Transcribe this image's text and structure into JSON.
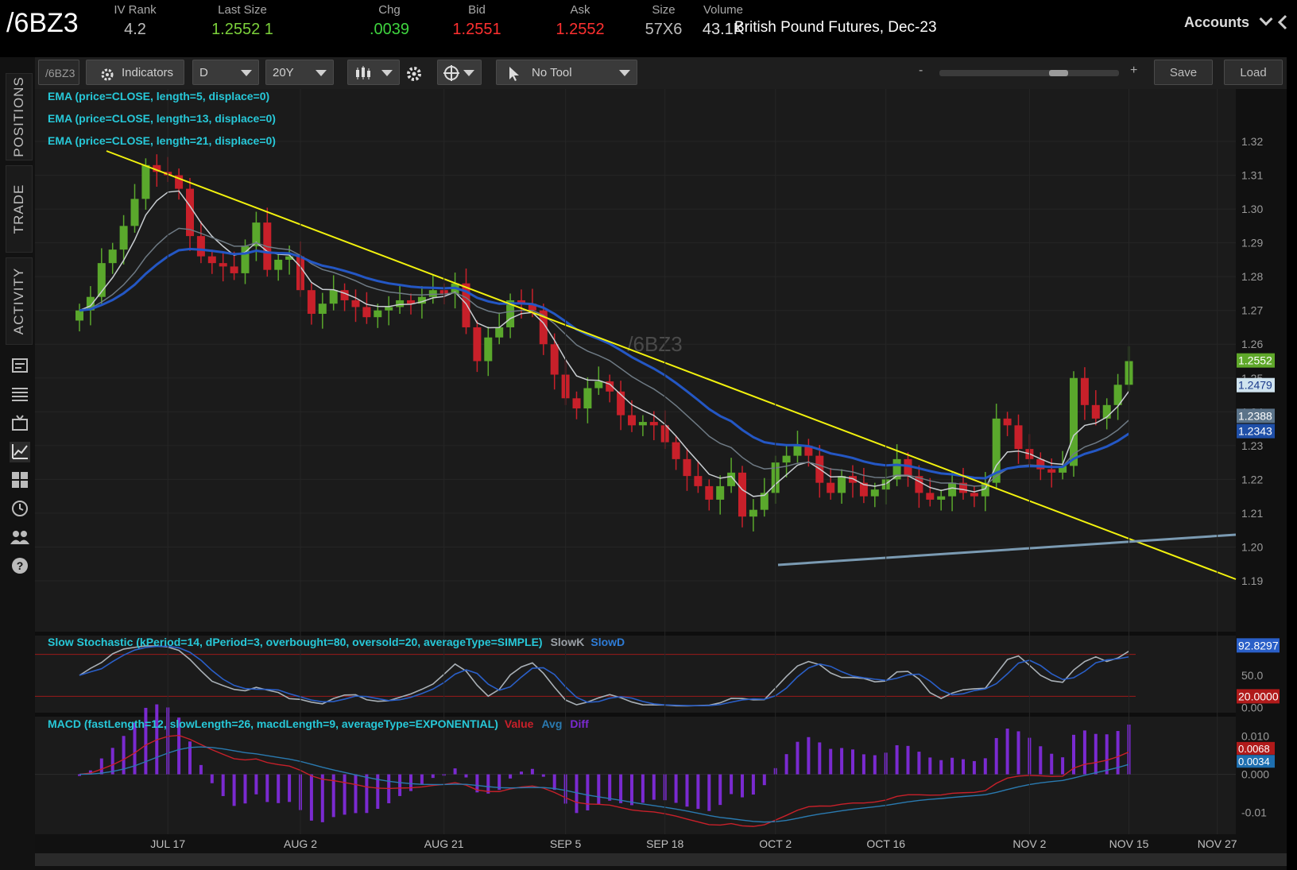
{
  "header": {
    "symbol": "/6BZ3",
    "stats": [
      {
        "label": "IV Rank",
        "value": "4.2",
        "color": "#bdbdbd"
      },
      {
        "label": "Last Size",
        "value": "1.2552",
        "extra": "1",
        "color": "#7cd13b"
      },
      {
        "label": "Chg",
        "value": ".0039",
        "color": "#3fd43f"
      },
      {
        "label": "Bid",
        "value": "1.2551",
        "color": "#ff3030"
      },
      {
        "label": "Ask",
        "value": "1.2552",
        "color": "#ff3030"
      },
      {
        "label": "Size",
        "value": "57X6",
        "color": "#bdbdbd"
      },
      {
        "label": "Volume",
        "value": "43.1K",
        "color": "#e0e0e0"
      }
    ],
    "description": "British Pound Futures, Dec-23",
    "accounts_label": "Accounts"
  },
  "rail": {
    "tabs": [
      "POSITIONS",
      "TRADE",
      "ACTIVITY"
    ],
    "icons": [
      "watchlist-icon",
      "list-icon",
      "tv-icon",
      "chart-icon",
      "grid-icon",
      "clock-icon",
      "people-icon",
      "help-icon"
    ]
  },
  "toolbar": {
    "symbol_field": "/6BZ3",
    "indicators_label": "Indicators",
    "aggregation": "D",
    "timeframe": "20Y",
    "drawing_tool": "No Tool",
    "zoom_minus": "-",
    "zoom_plus": "+",
    "save_label": "Save",
    "load_label": "Load"
  },
  "studies": {
    "ema1": "EMA (price=CLOSE, length=5, displace=0)",
    "ema2": "EMA (price=CLOSE, length=13, displace=0)",
    "ema3": "EMA (price=CLOSE, length=21, displace=0)",
    "watermark": "/6BZ3",
    "stoch_label": "Slow Stochastic (kPeriod=14, dPeriod=3, overbought=80, oversold=20, averageType=SIMPLE)",
    "stoch_k": "SlowK",
    "stoch_d": "SlowD",
    "macd_label": "MACD (fastLength=12, slowLength=26, macdLength=9, averageType=EXPONENTIAL)",
    "macd_value": "Value",
    "macd_avg": "Avg",
    "macd_diff": "Diff"
  },
  "chart_data": {
    "type": "candlestick",
    "price_axis": {
      "ticks": [
        "1.32",
        "1.31",
        "1.30",
        "1.29",
        "1.28",
        "1.27",
        "1.26",
        "1.25",
        "1.24",
        "1.23",
        "1.22",
        "1.21",
        "1.20",
        "1.19"
      ],
      "range": [
        1.186,
        1.328
      ]
    },
    "price_markers": [
      {
        "label": "1.2552",
        "bg": "#5fa82a",
        "fg": "#ffffff"
      },
      {
        "label": "1.2479",
        "bg": "#cfe3ee",
        "fg": "#1a3a8a"
      },
      {
        "label": "1.2388",
        "bg": "#5b7389",
        "fg": "#ffffff"
      },
      {
        "label": "1.2343",
        "bg": "#1f4fa8",
        "fg": "#ffffff"
      }
    ],
    "date_labels": [
      {
        "label": "JUL 17",
        "bar": 8
      },
      {
        "label": "AUG 2",
        "bar": 20
      },
      {
        "label": "AUG 21",
        "bar": 33
      },
      {
        "label": "SEP 5",
        "bar": 44
      },
      {
        "label": "SEP 18",
        "bar": 53
      },
      {
        "label": "OCT 2",
        "bar": 63
      },
      {
        "label": "OCT 16",
        "bar": 73
      },
      {
        "label": "NOV 2",
        "bar": 86
      },
      {
        "label": "NOV 15",
        "bar": 95
      },
      {
        "label": "NOV 27",
        "bar": 103
      }
    ],
    "closes": [
      1.27,
      1.274,
      1.284,
      1.288,
      1.295,
      1.303,
      1.313,
      1.311,
      1.31,
      1.306,
      1.292,
      1.286,
      1.284,
      1.283,
      1.281,
      1.289,
      1.296,
      1.282,
      1.285,
      1.286,
      1.276,
      1.269,
      1.272,
      1.276,
      1.273,
      1.271,
      1.268,
      1.27,
      1.271,
      1.273,
      1.272,
      1.274,
      1.276,
      1.275,
      1.278,
      1.265,
      1.255,
      1.262,
      1.265,
      1.273,
      1.272,
      1.27,
      1.26,
      1.251,
      1.244,
      1.241,
      1.247,
      1.249,
      1.246,
      1.239,
      1.236,
      1.237,
      1.236,
      1.231,
      1.226,
      1.221,
      1.218,
      1.214,
      1.218,
      1.222,
      1.209,
      1.211,
      1.216,
      1.225,
      1.227,
      1.23,
      1.227,
      1.219,
      1.216,
      1.221,
      1.219,
      1.215,
      1.217,
      1.22,
      1.226,
      1.221,
      1.216,
      1.214,
      1.215,
      1.219,
      1.216,
      1.215,
      1.219,
      1.238,
      1.236,
      1.229,
      1.226,
      1.223,
      1.222,
      1.224,
      1.25,
      1.242,
      1.238,
      1.242,
      1.248,
      1.255
    ],
    "ema_labels": [
      "EMA 5",
      "EMA 13",
      "EMA 21"
    ],
    "stochastic": {
      "ticks": [
        "50.0",
        "0.00"
      ],
      "markers": [
        "92.8297",
        "20.0000"
      ],
      "overbought": 80,
      "oversold": 20
    },
    "macd": {
      "ticks": [
        "0.010",
        "0.000",
        "-0.01"
      ],
      "markers": [
        "0.0068",
        "0.0034"
      ]
    }
  }
}
